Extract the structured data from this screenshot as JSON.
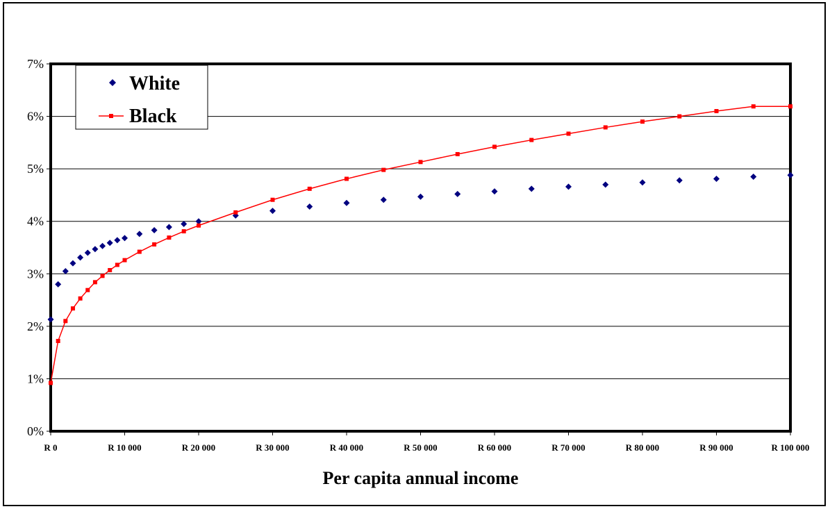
{
  "chart_data": {
    "type": "line",
    "title": "",
    "xlabel": "Per capita annual income",
    "ylabel": "",
    "xlim": [
      0,
      100000
    ],
    "ylim": [
      0,
      0.07
    ],
    "grid": true,
    "legend": "top-left",
    "x_tick_labels": [
      "R 0",
      "R 10 000",
      "R 20 000",
      "R 30 000",
      "R 40 000",
      "R 50 000",
      "R 60 000",
      "R 70 000",
      "R 80 000",
      "R 90 000",
      "R 100 000"
    ],
    "x_tick_values": [
      0,
      10000,
      20000,
      30000,
      40000,
      50000,
      60000,
      70000,
      80000,
      90000,
      100000
    ],
    "y_tick_labels": [
      "0%",
      "1%",
      "2%",
      "3%",
      "4%",
      "5%",
      "6%",
      "7%"
    ],
    "y_tick_values": [
      0,
      0.01,
      0.02,
      0.03,
      0.04,
      0.05,
      0.06,
      0.07
    ],
    "series": [
      {
        "name": "White",
        "color": "#000080",
        "marker": "diamond",
        "line": false,
        "x": [
          0,
          1000,
          2000,
          3000,
          4000,
          5000,
          6000,
          7000,
          8000,
          9000,
          10000,
          12000,
          14000,
          16000,
          18000,
          20000,
          25000,
          30000,
          35000,
          40000,
          45000,
          50000,
          55000,
          60000,
          65000,
          70000,
          75000,
          80000,
          85000,
          90000,
          95000,
          100000
        ],
        "values": [
          0.0213,
          0.028,
          0.0305,
          0.032,
          0.0331,
          0.034,
          0.0347,
          0.0353,
          0.0359,
          0.0364,
          0.0368,
          0.0376,
          0.0383,
          0.0389,
          0.0395,
          0.04,
          0.0411,
          0.042,
          0.0428,
          0.0435,
          0.0441,
          0.0447,
          0.0452,
          0.0457,
          0.0462,
          0.0466,
          0.047,
          0.0474,
          0.0478,
          0.0481,
          0.0485,
          0.0488
        ]
      },
      {
        "name": "Black",
        "color": "#ff0000",
        "marker": "square",
        "line": true,
        "x": [
          0,
          1000,
          2000,
          3000,
          4000,
          5000,
          6000,
          7000,
          8000,
          9000,
          10000,
          12000,
          14000,
          16000,
          18000,
          20000,
          25000,
          30000,
          35000,
          40000,
          45000,
          50000,
          55000,
          60000,
          65000,
          70000,
          75000,
          80000,
          85000,
          90000,
          95000,
          100000
        ],
        "values": [
          0.0092,
          0.0172,
          0.021,
          0.0234,
          0.0253,
          0.0269,
          0.0284,
          0.0296,
          0.0307,
          0.0317,
          0.0326,
          0.0342,
          0.0356,
          0.0369,
          0.0381,
          0.0392,
          0.0417,
          0.0441,
          0.0462,
          0.0481,
          0.0498,
          0.0513,
          0.0528,
          0.0542,
          0.0555,
          0.0567,
          0.0579,
          0.059,
          0.06,
          0.061,
          0.0619,
          0.0619
        ]
      }
    ]
  }
}
